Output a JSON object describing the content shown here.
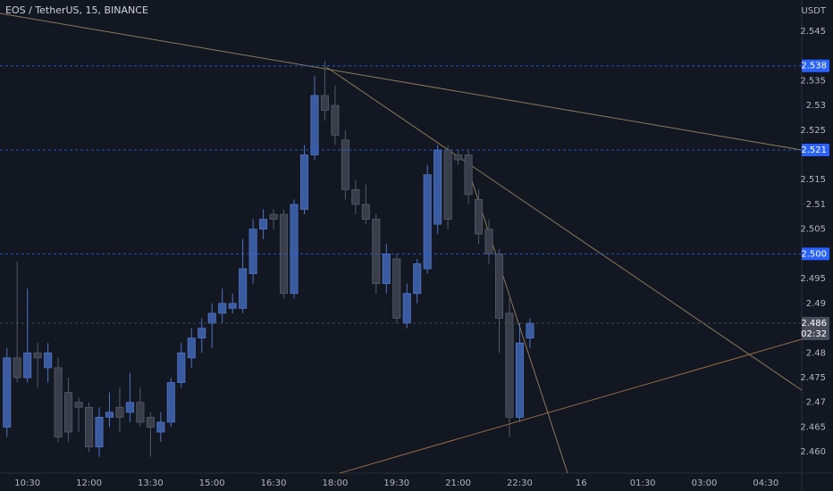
{
  "chart_data": {
    "type": "candlestick",
    "title": "EOS / TetherUS, 15, BINANCE",
    "y_axis_label": "USDT",
    "countdown": "02:32",
    "up_color": "#3a5ba0",
    "down_color": "#3a3e4a",
    "categories": [
      null,
      null,
      "10:30",
      null,
      null,
      null,
      null,
      null,
      "12:00",
      null,
      null,
      null,
      null,
      null,
      "13:30",
      null,
      null,
      null,
      null,
      null,
      "15:00",
      null,
      null,
      null,
      null,
      null,
      "16:30",
      null,
      null,
      null,
      null,
      null,
      "18:00",
      null,
      null,
      null,
      null,
      null,
      "19:30",
      null,
      null,
      null,
      null,
      null,
      "21:00",
      null,
      null,
      null,
      null,
      null,
      "22:30",
      null,
      null,
      null,
      null,
      null,
      "16",
      null,
      null,
      null,
      null,
      null,
      "01:30",
      null,
      null,
      null,
      null,
      null,
      "03:00",
      null,
      null,
      null,
      null,
      null,
      "04:30",
      null,
      null,
      null
    ],
    "open": [
      2.465,
      2.479,
      2.475,
      2.48,
      2.477,
      2.477,
      2.472,
      2.47,
      2.469,
      2.461,
      2.467,
      2.469,
      2.468,
      2.47,
      2.467,
      2.464,
      2.466,
      2.474,
      2.479,
      2.483,
      2.486,
      2.488,
      2.489,
      2.489,
      2.496,
      2.505,
      2.508,
      2.508,
      2.492,
      2.509,
      2.52,
      2.532,
      2.53,
      2.523,
      2.513,
      2.51,
      2.507,
      2.494,
      2.499,
      2.486,
      2.492,
      2.497,
      2.506,
      2.521,
      2.52,
      2.52,
      2.511,
      2.505,
      2.5,
      2.488,
      2.467,
      2.483,
      null,
      null,
      null,
      null,
      null,
      null,
      null,
      null,
      null,
      null,
      null,
      null,
      null,
      null,
      null,
      null,
      null,
      null,
      null,
      null,
      null,
      null,
      null,
      null,
      null,
      null
    ],
    "high": [
      2.481,
      2.4985,
      2.493,
      2.482,
      2.482,
      2.479,
      2.475,
      2.471,
      2.47,
      2.469,
      2.472,
      2.473,
      2.476,
      2.473,
      2.468,
      2.468,
      2.475,
      2.482,
      2.485,
      2.487,
      2.49,
      2.493,
      2.492,
      2.503,
      2.507,
      2.509,
      2.509,
      2.509,
      2.511,
      2.522,
      2.536,
      2.539,
      2.534,
      2.525,
      2.515,
      2.514,
      2.508,
      2.502,
      2.5,
      2.494,
      2.499,
      2.518,
      2.522,
      2.522,
      2.521,
      2.521,
      2.513,
      2.507,
      2.501,
      2.491,
      2.486,
      2.487,
      null,
      null,
      null,
      null,
      null,
      null,
      null,
      null,
      null,
      null,
      null,
      null,
      null,
      null,
      null,
      null,
      null,
      null,
      null,
      null,
      null,
      null,
      null,
      null,
      null,
      null
    ],
    "low": [
      2.463,
      2.474,
      2.474,
      2.473,
      2.474,
      2.462,
      2.462,
      2.464,
      2.46,
      2.459,
      2.465,
      2.464,
      2.466,
      2.465,
      2.459,
      2.462,
      2.465,
      2.473,
      2.477,
      2.48,
      2.481,
      2.486,
      2.488,
      2.488,
      2.494,
      2.503,
      2.505,
      2.491,
      2.491,
      2.508,
      2.519,
      2.527,
      2.522,
      2.511,
      2.508,
      2.506,
      2.492,
      2.492,
      2.486,
      2.485,
      2.49,
      2.496,
      2.504,
      2.505,
      2.518,
      2.51,
      2.502,
      2.498,
      2.48,
      2.463,
      2.466,
      2.481,
      null,
      null,
      null,
      null,
      null,
      null,
      null,
      null,
      null,
      null,
      null,
      null,
      null,
      null,
      null,
      null,
      null,
      null,
      null,
      null,
      null,
      null,
      null,
      null,
      null,
      null
    ],
    "close": [
      2.479,
      2.475,
      2.48,
      2.479,
      2.48,
      2.463,
      2.464,
      2.469,
      2.461,
      2.467,
      2.468,
      2.467,
      2.47,
      2.466,
      2.465,
      2.466,
      2.474,
      2.48,
      2.483,
      2.485,
      2.488,
      2.49,
      2.49,
      2.497,
      2.505,
      2.507,
      2.507,
      2.492,
      2.51,
      2.52,
      2.532,
      2.529,
      2.524,
      2.513,
      2.51,
      2.507,
      2.494,
      2.5,
      2.487,
      2.492,
      2.498,
      2.516,
      2.521,
      2.507,
      2.519,
      2.512,
      2.504,
      2.5,
      2.487,
      2.467,
      2.482,
      2.486,
      null,
      null,
      null,
      null,
      null,
      null,
      null,
      null,
      null,
      null,
      null,
      null,
      null,
      null,
      null,
      null,
      null,
      null,
      null,
      null,
      null,
      null,
      null,
      null,
      null,
      null
    ],
    "ylim": [
      2.4557,
      2.5513
    ],
    "yticks": [
      2.545,
      2.535,
      2.53,
      2.525,
      2.515,
      2.51,
      2.505,
      2.495,
      2.49,
      2.48,
      2.475,
      2.47,
      2.465,
      {
        "value": 2.46,
        "label": "2.460"
      }
    ],
    "price_lines": [
      {
        "value": 2.538,
        "color": "#2962ff"
      },
      {
        "value": 2.521,
        "color": "#2962ff"
      },
      {
        "value": 2.5,
        "label": "2.500",
        "color": "#2962ff"
      },
      {
        "value": 2.486,
        "color": "#4a4e5a"
      }
    ]
  }
}
